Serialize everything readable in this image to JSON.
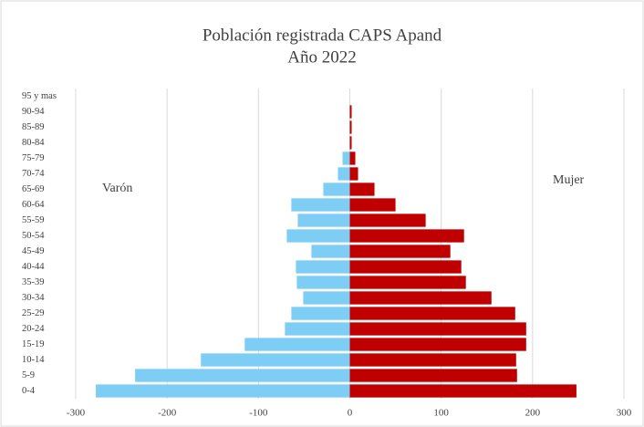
{
  "chart_data": {
    "type": "bar",
    "orientation": "horizontal",
    "title": "Población registrada CAPS Apand",
    "subtitle": "Año 2022",
    "categories": [
      "0-4",
      "5-9",
      "10-14",
      "15-19",
      "20-24",
      "25-29",
      "30-34",
      "35-39",
      "40-44",
      "45-49",
      "50-54",
      "55-59",
      "60-64",
      "65-69",
      "70-74",
      "75-79",
      "80-84",
      "85-89",
      "90-94",
      "95 y mas"
    ],
    "series": [
      {
        "name": "Varón",
        "color": "#7dcdf5",
        "values": [
          -278,
          -235,
          -163,
          -115,
          -71,
          -64,
          -51,
          -58,
          -59,
          -42,
          -69,
          -57,
          -64,
          -29,
          -13,
          -8,
          0,
          0,
          0,
          0
        ]
      },
      {
        "name": "Mujer",
        "color": "#c00000",
        "values": [
          248,
          183,
          182,
          193,
          193,
          181,
          155,
          127,
          122,
          110,
          125,
          83,
          50,
          27,
          9,
          6,
          2,
          2,
          2,
          0
        ]
      }
    ],
    "xlim": [
      -300,
      300
    ],
    "xticks": [
      -300,
      -200,
      -100,
      0,
      100,
      200,
      300
    ],
    "grid": true
  }
}
